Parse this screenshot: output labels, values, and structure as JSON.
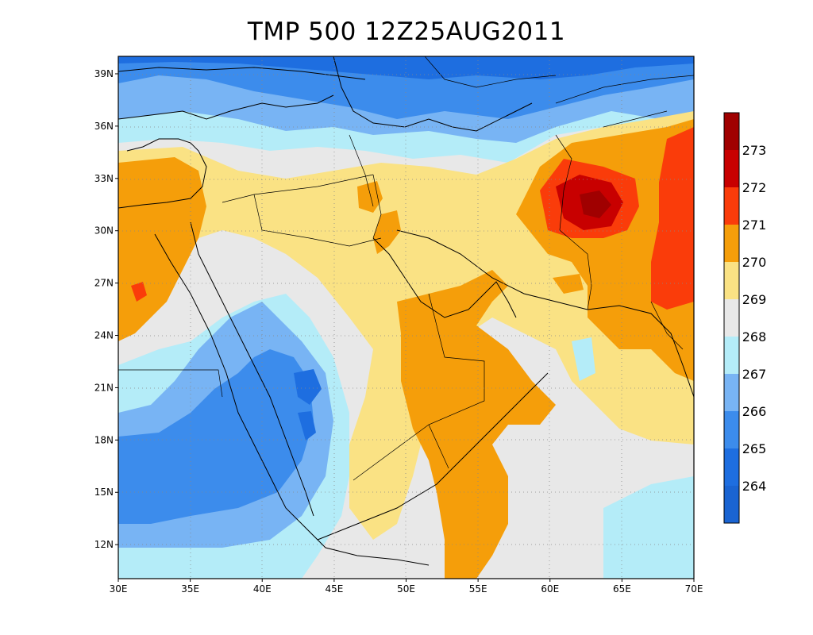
{
  "title": "TMP 500 12Z25AUG2011",
  "map": {
    "lon_ticks": [
      "30E",
      "35E",
      "40E",
      "45E",
      "50E",
      "55E",
      "60E",
      "65E",
      "70E"
    ],
    "lat_ticks": [
      "12N",
      "15N",
      "18N",
      "21N",
      "24N",
      "27N",
      "30N",
      "33N",
      "36N",
      "39N"
    ],
    "background_color": "#e8e8e8",
    "grid_lines": "dotted"
  },
  "colorbar": {
    "labels": [
      "264",
      "265",
      "266",
      "267",
      "268",
      "269",
      "270",
      "271",
      "272",
      "273"
    ],
    "colors": [
      "#1a64d2",
      "#1e6ee0",
      "#3c8cec",
      "#78b4f4",
      "#b4ecf8",
      "#e8e8e8",
      "#fae284",
      "#f59e0a",
      "#fa3c0a",
      "#c80000",
      "#a00000"
    ]
  }
}
